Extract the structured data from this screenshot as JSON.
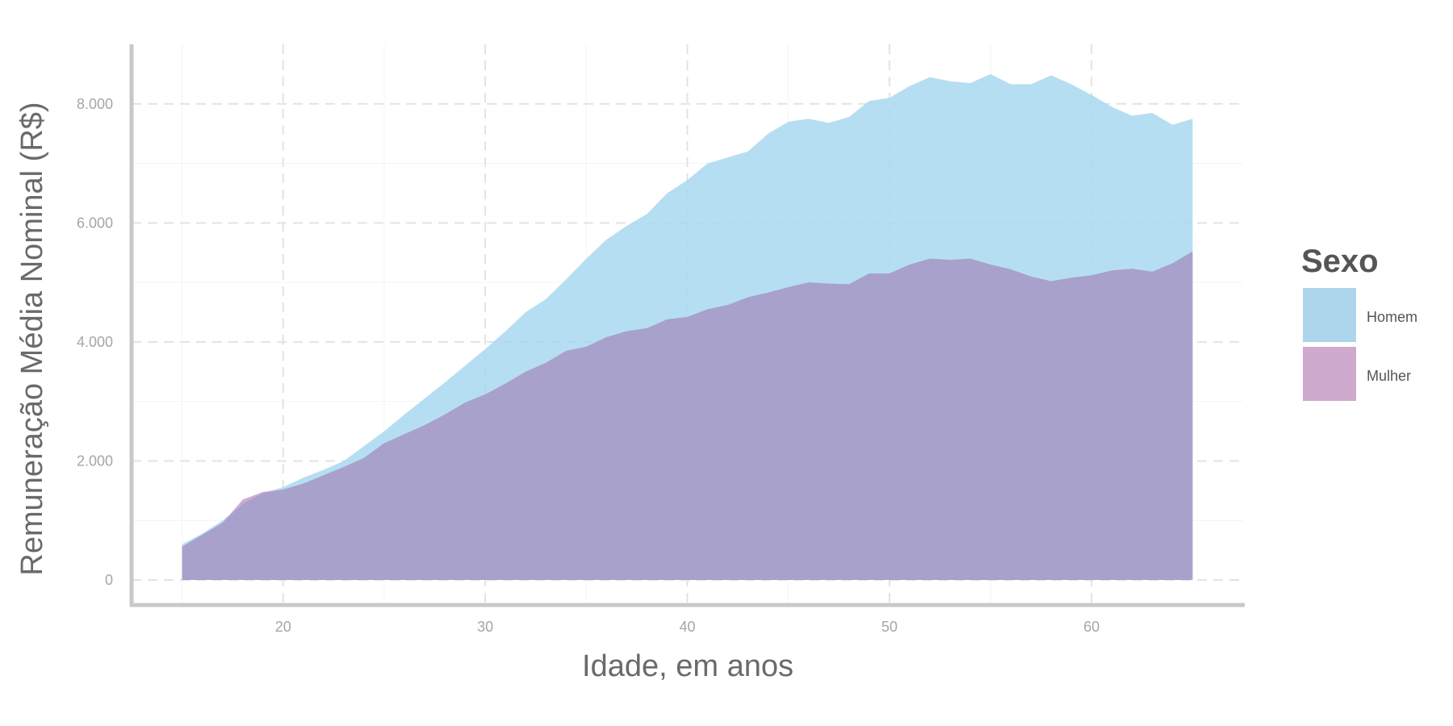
{
  "chart_data": {
    "type": "area",
    "title": "",
    "xlabel": "Idade, em anos",
    "ylabel": "Remuneração Média Nominal (R$)",
    "xlim": [
      12.5,
      67.5
    ],
    "ylim": [
      -420,
      9000
    ],
    "xticks": [
      20,
      30,
      40,
      50,
      60
    ],
    "yticks": [
      0,
      2000,
      4000,
      6000,
      8000
    ],
    "ytick_labels": [
      "0",
      "2.000",
      "4.000",
      "6.000",
      "8.000"
    ],
    "xtick_labels": [
      "20",
      "30",
      "40",
      "50",
      "60"
    ],
    "grid": true,
    "legend": {
      "title": "Sexo",
      "position": "right"
    },
    "x": [
      15,
      16,
      17,
      18,
      19,
      20,
      21,
      22,
      23,
      24,
      25,
      26,
      27,
      28,
      29,
      30,
      31,
      32,
      33,
      34,
      35,
      36,
      37,
      38,
      39,
      40,
      41,
      42,
      43,
      44,
      45,
      46,
      47,
      48,
      49,
      50,
      51,
      52,
      53,
      54,
      55,
      56,
      57,
      58,
      59,
      60,
      61,
      62,
      63,
      64,
      65
    ],
    "series": [
      {
        "name": "Homem",
        "color": "#a9d8f0",
        "values": [
          600,
          780,
          1000,
          1280,
          1460,
          1560,
          1720,
          1850,
          2000,
          2250,
          2500,
          2780,
          3050,
          3320,
          3600,
          3880,
          4180,
          4500,
          4720,
          5050,
          5400,
          5720,
          5950,
          6150,
          6500,
          6720,
          7000,
          7100,
          7200,
          7500,
          7700,
          7750,
          7680,
          7780,
          8050,
          8100,
          8300,
          8450,
          8380,
          8350,
          8500,
          8330,
          8330,
          8480,
          8330,
          8150,
          7950,
          7800,
          7850,
          7650,
          7750
        ]
      },
      {
        "name": "Mulher",
        "color": "#c7a3cd",
        "values": [
          560,
          760,
          960,
          1350,
          1480,
          1520,
          1620,
          1760,
          1900,
          2050,
          2300,
          2450,
          2600,
          2780,
          2980,
          3120,
          3300,
          3500,
          3650,
          3850,
          3920,
          4080,
          4180,
          4230,
          4380,
          4420,
          4550,
          4620,
          4750,
          4830,
          4920,
          5000,
          4980,
          4970,
          5150,
          5150,
          5300,
          5400,
          5380,
          5400,
          5300,
          5220,
          5100,
          5020,
          5080,
          5120,
          5200,
          5230,
          5180,
          5320,
          5520
        ]
      }
    ],
    "overlap_color": "#a8a1cc"
  }
}
